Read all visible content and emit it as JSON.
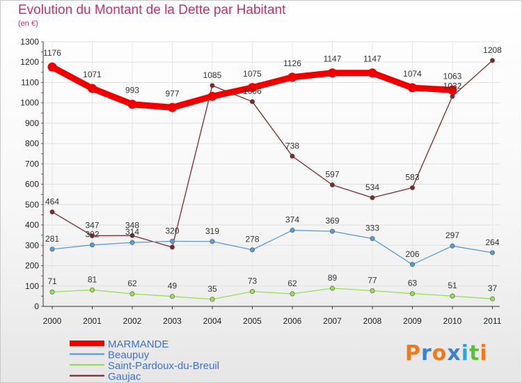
{
  "chart_data": {
    "type": "line",
    "title": "Evolution du Montant de la Dette par Habitant",
    "subtitle": "(en €)",
    "xlabel": "",
    "ylabel": "",
    "ylim": [
      0,
      1300
    ],
    "yticks": [
      0,
      100,
      200,
      300,
      400,
      500,
      600,
      700,
      800,
      900,
      1000,
      1100,
      1200,
      1300
    ],
    "grid": true,
    "legend_position": "bottom-left",
    "x": [
      "2000",
      "2001",
      "2002",
      "2003",
      "2004",
      "2005",
      "2006",
      "2007",
      "2008",
      "2009",
      "2010",
      "2011"
    ],
    "series": [
      {
        "name": "MARMANDE",
        "color": "#ee0000",
        "values": [
          1176,
          1071,
          993,
          977,
          1032,
          1075,
          1126,
          1147,
          1147,
          1074,
          1063,
          null
        ],
        "labels": [
          "1176",
          "1071",
          "993",
          "977",
          "",
          "1075",
          "1126",
          "1147",
          "1147",
          "1074",
          "1063",
          ""
        ]
      },
      {
        "name": "Beaupuy",
        "color": "#5b9bd5",
        "values": [
          281,
          302,
          314,
          320,
          319,
          278,
          374,
          369,
          333,
          206,
          297,
          264
        ],
        "labels": [
          "281",
          "302",
          "314",
          "320",
          "319",
          "278",
          "374",
          "369",
          "333",
          "206",
          "297",
          "264"
        ]
      },
      {
        "name": "Saint-Pardoux-du-Breuil",
        "color": "#99dd55",
        "values": [
          71,
          81,
          62,
          49,
          35,
          73,
          62,
          89,
          77,
          63,
          51,
          37
        ],
        "labels": [
          "71",
          "81",
          "62",
          "49",
          "35",
          "73",
          "62",
          "89",
          "77",
          "63",
          "51",
          "37"
        ]
      },
      {
        "name": "Gaujac",
        "color": "#7a2a2a",
        "values": [
          464,
          347,
          348,
          291,
          1085,
          1006,
          738,
          597,
          534,
          583,
          1032,
          1208
        ],
        "labels": [
          "464",
          "347",
          "348",
          "",
          "1085",
          "1006",
          "738",
          "597",
          "534",
          "583",
          "1032",
          "1208"
        ]
      }
    ]
  },
  "logo": {
    "letters": [
      "P",
      "r",
      "o",
      "x",
      "i",
      "t",
      "i"
    ],
    "colors": [
      "#f07a1a",
      "#3a7fd5",
      "#f07a1a",
      "#3a7fd5",
      "#2aa7d8",
      "#5bbf3a",
      "#f07a1a"
    ]
  }
}
